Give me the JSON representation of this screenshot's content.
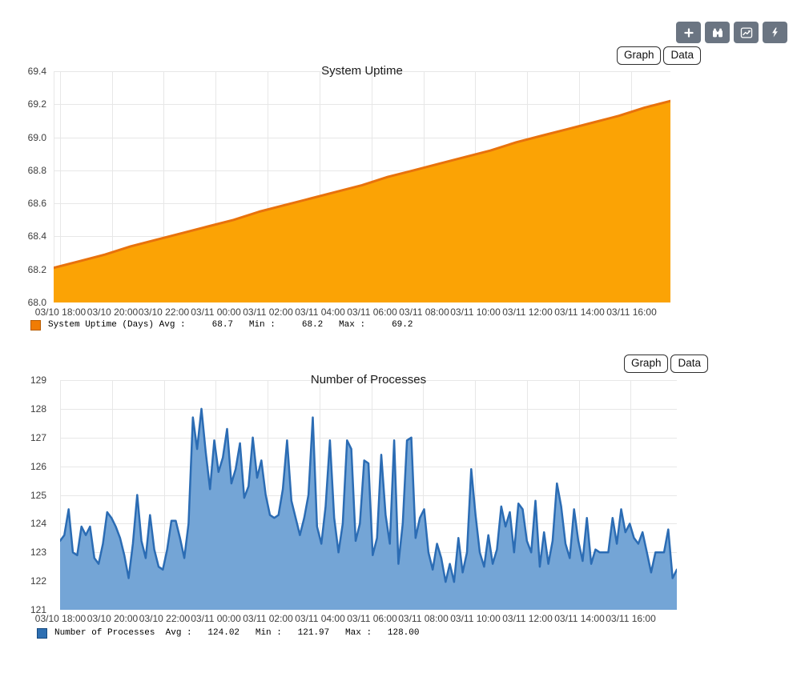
{
  "toolbar": {
    "buttons": [
      {
        "name": "add",
        "icon": "plus-icon"
      },
      {
        "name": "search",
        "icon": "binoculars-icon"
      },
      {
        "name": "graphs",
        "icon": "chart-line-icon"
      },
      {
        "name": "actions",
        "icon": "bolt-icon"
      }
    ],
    "button_color": "#6B7582"
  },
  "chart_data": [
    {
      "type": "area",
      "title": "System Uptime",
      "tabs": [
        "Graph",
        "Data"
      ],
      "active_tab": "Graph",
      "grid": true,
      "legend_position": "bottom-left",
      "ylim": [
        68.0,
        69.4
      ],
      "y_ticks": [
        "69.4",
        "69.2",
        "69.0",
        "68.8",
        "68.6",
        "68.4",
        "68.2",
        "68.0"
      ],
      "x_ticks": [
        "03/10 18:00",
        "03/10 20:00",
        "03/10 22:00",
        "03/11 00:00",
        "03/11 02:00",
        "03/11 04:00",
        "03/11 06:00",
        "03/11 08:00",
        "03/11 10:00",
        "03/11 12:00",
        "03/11 14:00",
        "03/11 16:00"
      ],
      "x_tick_start_frac": 0.01,
      "x_tick_step_frac": 0.0842,
      "series": [
        {
          "name": "System Uptime (Days)",
          "line_color": "#E8720C",
          "fill_color": "#FBA305",
          "swatch_color": "#F07C04",
          "swatch_border": "#B85C00",
          "line_width": 3
        }
      ],
      "values": [
        68.21,
        68.25,
        68.29,
        68.34,
        68.38,
        68.42,
        68.46,
        68.5,
        68.55,
        68.59,
        68.63,
        68.67,
        68.71,
        68.76,
        68.8,
        68.84,
        68.88,
        68.92,
        68.97,
        69.01,
        69.05,
        69.09,
        69.13,
        69.18,
        69.22
      ],
      "stats": {
        "avg": "68.7",
        "min": "68.2",
        "max": "69.2"
      },
      "legend_label": "System Uptime (Days)",
      "legend_text": "System Uptime (Days) Avg :     68.7   Min :     68.2   Max :     69.2"
    },
    {
      "type": "area",
      "title": "Number of Processes",
      "tabs": [
        "Graph",
        "Data"
      ],
      "active_tab": "Graph",
      "grid": true,
      "legend_position": "bottom-left",
      "ylim": [
        121,
        129
      ],
      "y_ticks": [
        "129",
        "128",
        "127",
        "126",
        "125",
        "124",
        "123",
        "122",
        "121"
      ],
      "x_ticks": [
        "03/10 18:00",
        "03/10 20:00",
        "03/10 22:00",
        "03/11 00:00",
        "03/11 02:00",
        "03/11 04:00",
        "03/11 06:00",
        "03/11 08:00",
        "03/11 10:00",
        "03/11 12:00",
        "03/11 14:00",
        "03/11 16:00"
      ],
      "x_tick_start_frac": 0.0,
      "x_tick_step_frac": 0.0841,
      "series": [
        {
          "name": "Number of Processes",
          "line_color": "#2B6CB4",
          "fill_color": "#74A5D6",
          "swatch_color": "#2D6FB2",
          "swatch_border": "#174A80",
          "line_width": 2.5
        }
      ],
      "values": [
        123.4,
        123.6,
        124.5,
        123.0,
        122.9,
        123.9,
        123.6,
        123.9,
        122.8,
        122.6,
        123.3,
        124.4,
        124.2,
        123.9,
        123.5,
        122.9,
        122.1,
        123.3,
        125.0,
        123.4,
        122.8,
        124.3,
        123.1,
        122.5,
        122.4,
        123.1,
        124.1,
        124.1,
        123.5,
        122.8,
        124.0,
        127.7,
        126.6,
        128.0,
        126.5,
        125.2,
        126.9,
        125.8,
        126.3,
        127.3,
        125.4,
        125.9,
        126.8,
        124.9,
        125.3,
        127.0,
        125.6,
        126.2,
        125.0,
        124.3,
        124.2,
        124.3,
        125.2,
        126.9,
        124.8,
        124.2,
        123.6,
        124.2,
        125.0,
        127.7,
        123.9,
        123.3,
        124.6,
        126.9,
        124.2,
        123.0,
        124.0,
        126.9,
        126.6,
        123.4,
        124.0,
        126.2,
        126.1,
        122.9,
        123.5,
        126.4,
        124.3,
        123.3,
        126.9,
        122.6,
        124.0,
        126.9,
        127.0,
        123.5,
        124.2,
        124.5,
        123.0,
        122.4,
        123.3,
        122.8,
        121.97,
        122.6,
        121.97,
        123.5,
        122.3,
        123.0,
        125.9,
        124.3,
        123.0,
        122.5,
        123.6,
        122.6,
        123.1,
        124.6,
        123.9,
        124.4,
        123.0,
        124.7,
        124.5,
        123.4,
        123.0,
        124.8,
        122.5,
        123.7,
        122.6,
        123.4,
        125.4,
        124.6,
        123.3,
        122.8,
        124.5,
        123.4,
        122.7,
        124.2,
        122.6,
        123.1,
        123.0,
        123.0,
        123.0,
        124.2,
        123.3,
        124.5,
        123.7,
        124.0,
        123.5,
        123.3,
        123.7,
        123.0,
        122.3,
        123.0,
        123.0,
        123.0,
        123.8,
        122.1,
        122.4
      ],
      "stats": {
        "avg": "124.02",
        "min": "121.97",
        "max": "128.00"
      },
      "legend_label": "Number of Processes",
      "legend_text": "Number of Processes  Avg :   124.02   Min :   121.97   Max :   128.00"
    }
  ],
  "layout": {
    "grid_color": "#E7E7E7"
  }
}
